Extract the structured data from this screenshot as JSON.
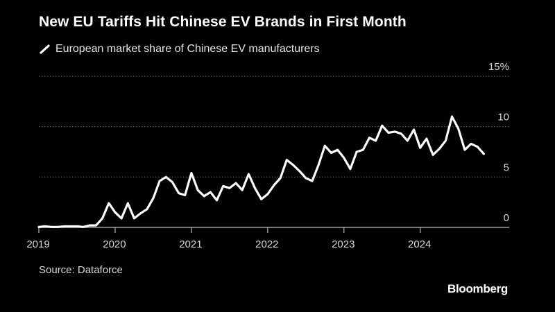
{
  "header": {
    "title": "New EU Tariffs Hit Chinese EV Brands in First Month",
    "legend_label": "European market share of Chinese EV manufacturers"
  },
  "footer": {
    "source": "Source: Dataforce",
    "brand": "Bloomberg"
  },
  "colors": {
    "background": "#000000",
    "line": "#ffffff",
    "grid": "#6e6e6e",
    "axis": "#bfbfbf"
  },
  "chart_data": {
    "type": "line",
    "title": "New EU Tariffs Hit Chinese EV Brands in First Month",
    "series": [
      {
        "name": "European market share of Chinese EV manufacturers",
        "x": [
          "2019-01",
          "2019-02",
          "2019-03",
          "2019-04",
          "2019-05",
          "2019-06",
          "2019-07",
          "2019-08",
          "2019-09",
          "2019-10",
          "2019-11",
          "2019-12",
          "2020-01",
          "2020-02",
          "2020-03",
          "2020-04",
          "2020-05",
          "2020-06",
          "2020-07",
          "2020-08",
          "2020-09",
          "2020-10",
          "2020-11",
          "2020-12",
          "2021-01",
          "2021-02",
          "2021-03",
          "2021-04",
          "2021-05",
          "2021-06",
          "2021-07",
          "2021-08",
          "2021-09",
          "2021-10",
          "2021-11",
          "2021-12",
          "2022-01",
          "2022-02",
          "2022-03",
          "2022-04",
          "2022-05",
          "2022-06",
          "2022-07",
          "2022-08",
          "2022-09",
          "2022-10",
          "2022-11",
          "2022-12",
          "2023-01",
          "2023-02",
          "2023-03",
          "2023-04",
          "2023-05",
          "2023-06",
          "2023-07",
          "2023-08",
          "2023-09",
          "2023-10",
          "2023-11",
          "2023-12",
          "2024-01",
          "2024-02",
          "2024-03",
          "2024-04",
          "2024-05",
          "2024-06",
          "2024-07",
          "2024-08",
          "2024-09",
          "2024-10",
          "2024-11"
        ],
        "values": [
          0.05,
          0.1,
          0.05,
          0.05,
          0.1,
          0.1,
          0.1,
          0.05,
          0.2,
          0.2,
          0.9,
          2.4,
          1.5,
          0.9,
          2.4,
          0.9,
          1.4,
          1.8,
          2.9,
          4.6,
          5.0,
          4.5,
          3.4,
          3.2,
          5.4,
          3.7,
          3.1,
          3.5,
          2.7,
          4.1,
          3.9,
          4.4,
          3.7,
          5.3,
          3.9,
          2.8,
          3.3,
          4.2,
          4.9,
          6.7,
          6.2,
          5.6,
          4.9,
          4.6,
          6.2,
          8.1,
          7.4,
          7.7,
          6.9,
          5.8,
          7.5,
          7.7,
          8.9,
          8.6,
          10.1,
          9.4,
          9.5,
          9.3,
          8.6,
          9.7,
          7.9,
          8.8,
          7.2,
          7.8,
          8.6,
          11.0,
          9.8,
          7.7,
          8.3,
          8.0,
          7.3
        ]
      }
    ],
    "x_ticks": [
      "2019",
      "2020",
      "2021",
      "2022",
      "2023",
      "2024"
    ],
    "y_ticks": [
      0,
      5,
      10,
      15
    ],
    "y_tick_labels": [
      "0",
      "5",
      "10",
      "15%"
    ],
    "ylim": [
      0,
      15
    ],
    "xlim": [
      "2019-01",
      "2025-03"
    ],
    "grid": true,
    "grid_style": "dotted horizontal",
    "y_axis_side": "right",
    "xlabel": "",
    "ylabel": ""
  }
}
